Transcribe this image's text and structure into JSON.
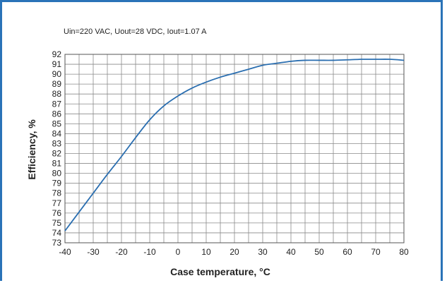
{
  "chart_data": {
    "type": "line",
    "subtitle": "Uin=220 VAC, Uout=28 VDC, Iout=1.07 A",
    "xlabel": "Case temperature, °C",
    "ylabel": "Efficiency, %",
    "xlim": [
      -40,
      80
    ],
    "ylim": [
      73,
      92
    ],
    "x_major_ticks": [
      -40,
      -30,
      -20,
      -10,
      0,
      10,
      20,
      30,
      40,
      50,
      60,
      70,
      80
    ],
    "x_minor_step": 5,
    "y_ticks": [
      73,
      74,
      75,
      76,
      77,
      78,
      79,
      80,
      81,
      82,
      83,
      84,
      85,
      86,
      87,
      88,
      89,
      90,
      91,
      92
    ],
    "grid": true,
    "line_color": "#2a6eb0",
    "frame_color": "#2a73b8",
    "series": [
      {
        "x": [
          -40,
          -35,
          -30,
          -25,
          -20,
          -15,
          -10,
          -5,
          0,
          5,
          10,
          15,
          20,
          25,
          30,
          35,
          40,
          45,
          50,
          55,
          60,
          65,
          70,
          75,
          80
        ],
        "values": [
          74.2,
          76.1,
          78.0,
          79.9,
          81.7,
          83.6,
          85.4,
          86.8,
          87.8,
          88.6,
          89.2,
          89.7,
          90.1,
          90.5,
          90.9,
          91.1,
          91.3,
          91.4,
          91.4,
          91.4,
          91.45,
          91.5,
          91.5,
          91.5,
          91.4
        ]
      }
    ]
  }
}
